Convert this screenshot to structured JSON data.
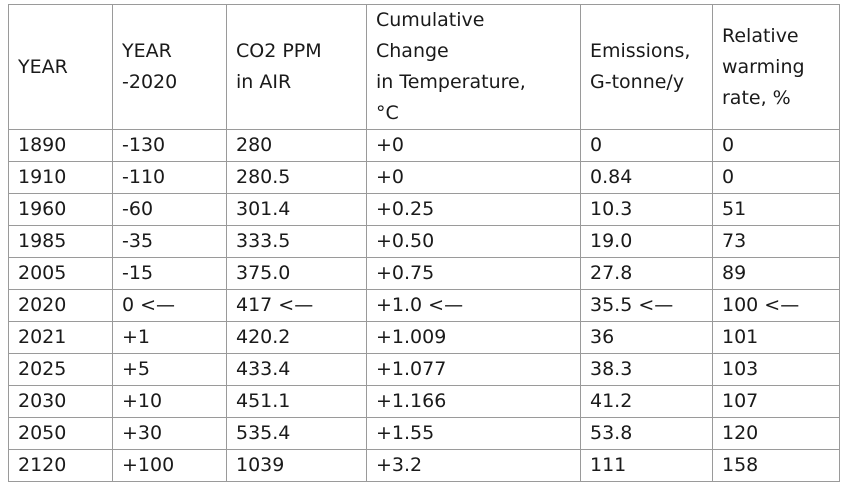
{
  "table": {
    "header": [
      "YEAR",
      "YEAR\n-2020",
      "CO2 PPM\nin AIR",
      "Cumulative\nChange\nin Temperature,\n°C",
      "Emissions,\nG-tonne/y",
      "Relative\nwarming\nrate, %"
    ],
    "rows": [
      [
        "1890",
        "-130",
        "280",
        "+0",
        "0",
        "0"
      ],
      [
        "1910",
        "-110",
        "280.5",
        "+0",
        "0.84",
        "0"
      ],
      [
        "1960",
        "-60",
        "301.4",
        "+0.25",
        "10.3",
        "51"
      ],
      [
        "1985",
        "-35",
        "333.5",
        "+0.50",
        "19.0",
        "73"
      ],
      [
        "2005",
        "-15",
        "375.0",
        "+0.75",
        "27.8",
        "89"
      ],
      [
        "2020",
        "0 <—",
        "417 <—",
        "+1.0 <—",
        "35.5 <—",
        "100 <—"
      ],
      [
        "2021",
        "+1",
        "420.2",
        "+1.009",
        "36",
        "101"
      ],
      [
        "2025",
        "+5",
        "433.4",
        "+1.077",
        "38.3",
        "103"
      ],
      [
        "2030",
        "+10",
        "451.1",
        "+1.166",
        "41.2",
        "107"
      ],
      [
        "2050",
        "+30",
        "535.4",
        "+1.55",
        "53.8",
        "120"
      ],
      [
        "2120",
        "+100",
        "1039",
        "+3.2",
        "111",
        "158"
      ]
    ]
  }
}
